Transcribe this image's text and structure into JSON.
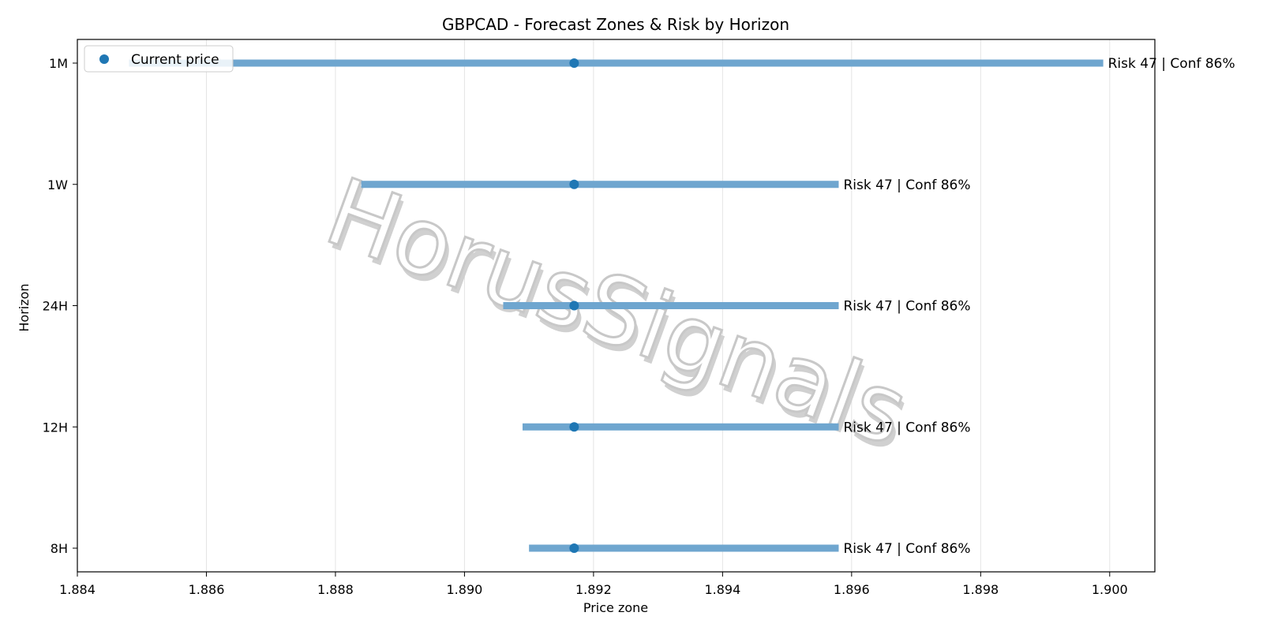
{
  "chart_data": {
    "type": "range-bar",
    "title": "GBPCAD - Forecast Zones & Risk by Horizon",
    "xlabel": "Price zone",
    "ylabel": "Horizon",
    "xlim": [
      1.884,
      1.9007
    ],
    "x_ticks": [
      "1.884",
      "1.886",
      "1.888",
      "1.890",
      "1.892",
      "1.894",
      "1.896",
      "1.898",
      "1.900"
    ],
    "x_tick_values": [
      1.884,
      1.886,
      1.888,
      1.89,
      1.892,
      1.894,
      1.896,
      1.898,
      1.9
    ],
    "categories": [
      "1M",
      "1W",
      "24H",
      "12H",
      "8H"
    ],
    "current_price": 1.8917,
    "series": [
      {
        "name": "",
        "ranges": [
          {
            "horizon": "1M",
            "low": 1.8848,
            "high": 1.8999,
            "label": "Risk 47 | Conf 86%"
          },
          {
            "horizon": "1W",
            "low": 1.8884,
            "high": 1.8958,
            "label": "Risk 47 | Conf 86%"
          },
          {
            "horizon": "24H",
            "low": 1.8906,
            "high": 1.8958,
            "label": "Risk 47 | Conf 86%"
          },
          {
            "horizon": "12H",
            "low": 1.8909,
            "high": 1.8958,
            "label": "Risk 47 | Conf 86%"
          },
          {
            "horizon": "8H",
            "low": 1.891,
            "high": 1.8958,
            "label": "Risk 47 | Conf 86%"
          }
        ]
      },
      {
        "name": "Current price"
      }
    ],
    "legend": {
      "entries": [
        "Current price"
      ],
      "placement": "upper-left"
    },
    "grid": {
      "x": true,
      "y": false
    },
    "colors": {
      "range_bar": "#6fa6cf",
      "point": "#1f77b4",
      "grid": "#e4e4e4"
    },
    "watermark": "HorusSignals"
  }
}
